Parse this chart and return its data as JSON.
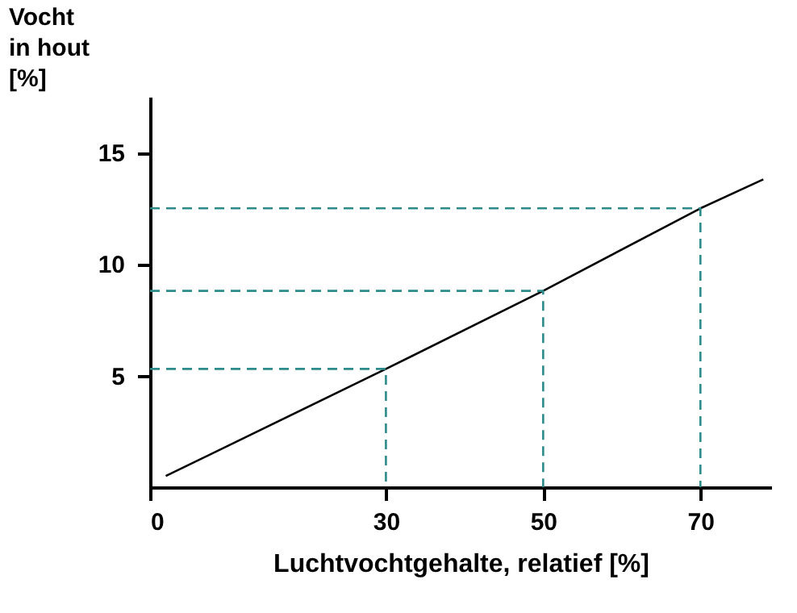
{
  "chart_data": {
    "type": "line",
    "xlabel": "Luchtvochtgehalte, relatief [%]",
    "ylabel": "Vocht\nin hout\n[%]",
    "xlim": [
      0,
      79
    ],
    "xticks": [
      0,
      30,
      50,
      70
    ],
    "ylim": [
      0,
      17.5
    ],
    "yticks": [
      5,
      10,
      15
    ],
    "grid": false,
    "marker": "none",
    "series": [
      {
        "x": [
          2,
          30,
          50,
          70,
          78
        ],
        "values": [
          0.5,
          5.3,
          8.8,
          12.5,
          13.8
        ],
        "color": "#000000",
        "line_style": "solid"
      },
      {
        "x": [
          0,
          30,
          30
        ],
        "values": [
          5.3,
          5.3,
          0
        ],
        "color": "#2e8b8b",
        "line_style": "dashed"
      },
      {
        "x": [
          0,
          50,
          50
        ],
        "values": [
          8.8,
          8.8,
          0
        ],
        "color": "#2e8b8b",
        "line_style": "dashed"
      },
      {
        "x": [
          0,
          70,
          70
        ],
        "values": [
          12.5,
          12.5,
          0
        ],
        "color": "#2e8b8b",
        "line_style": "dashed"
      }
    ]
  }
}
